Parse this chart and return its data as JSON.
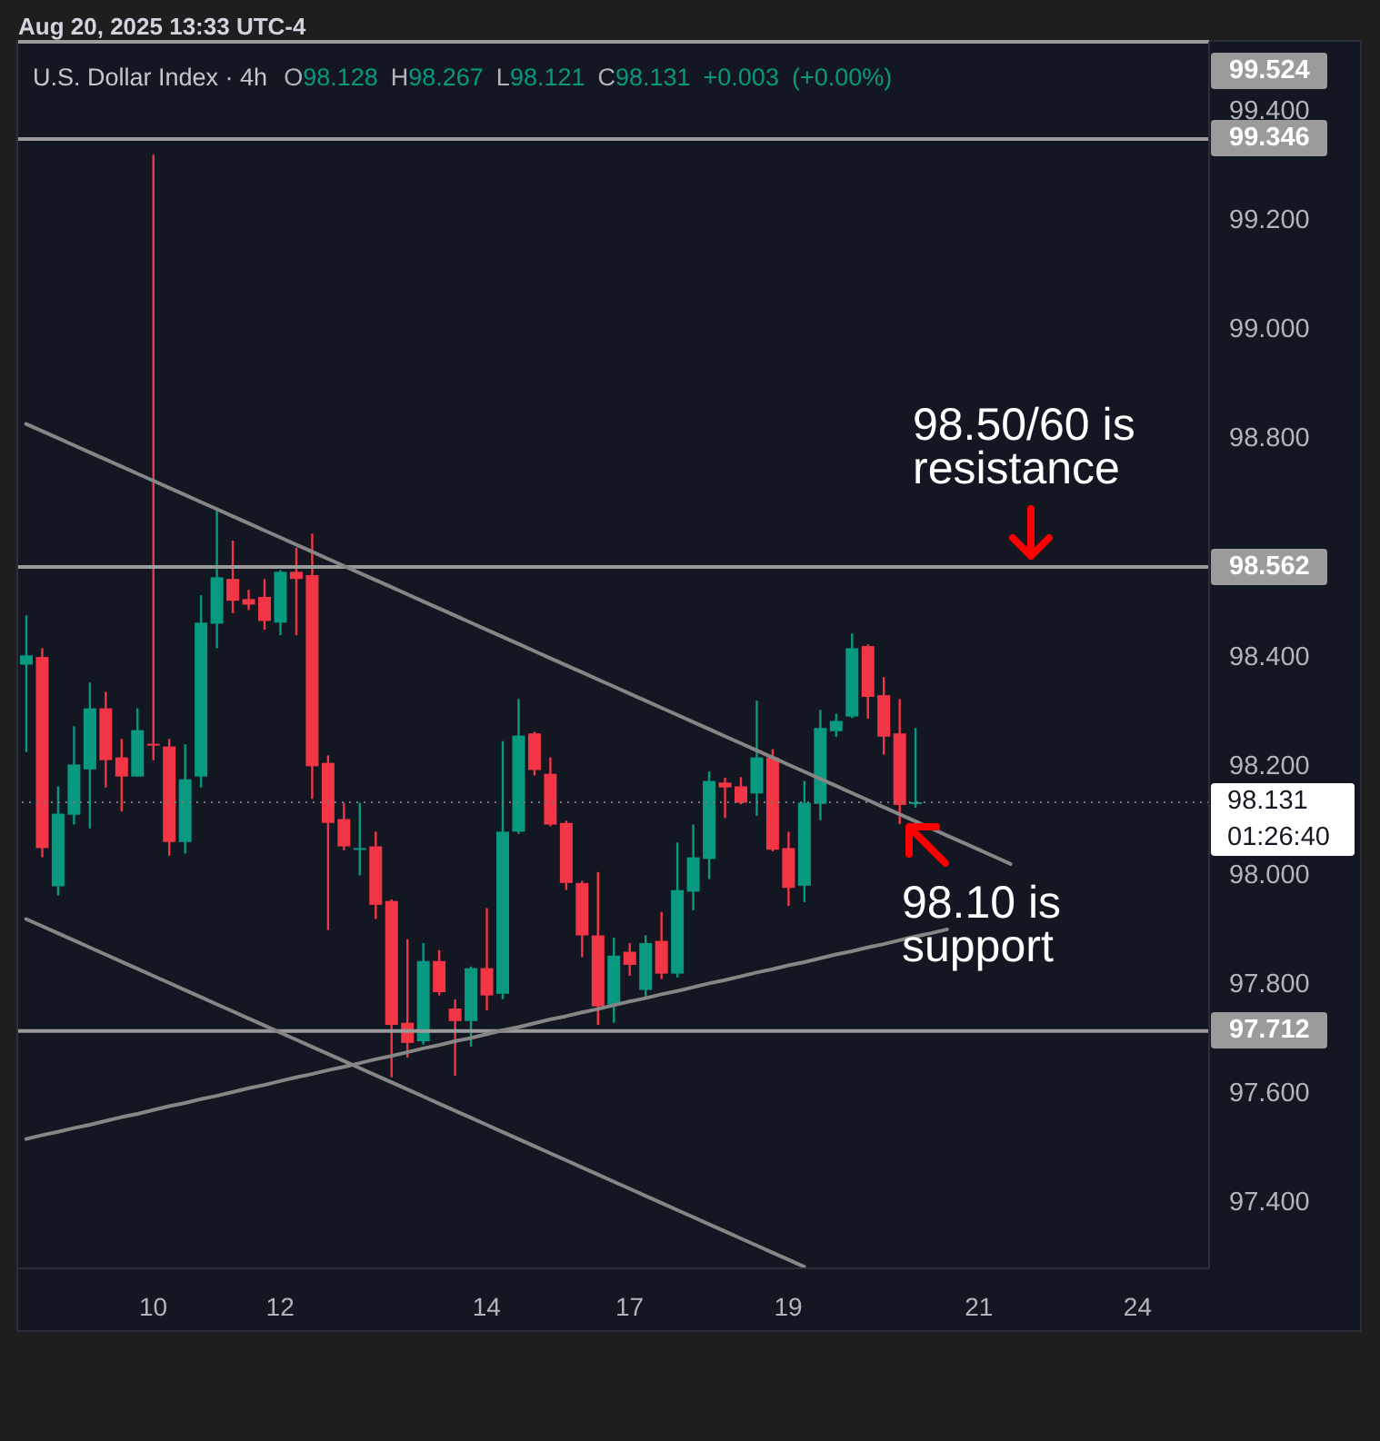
{
  "chart_data": {
    "type": "candlestick",
    "title": "U.S. Dollar Index · 4h",
    "subtitle": "O98.128 H98.267 L98.121 C98.131 +0.003 (+0.00%)",
    "annotations": [
      "Aug 20, 2025 13:33 UTC-4",
      "98.50/60 is resistance",
      "98.10 is support",
      "01:26:40"
    ],
    "categories": [
      null,
      null,
      null,
      null,
      null,
      null,
      null,
      null,
      "10",
      null,
      null,
      null,
      null,
      null,
      null,
      null,
      "12",
      null,
      null,
      null,
      null,
      null,
      null,
      null,
      null,
      null,
      null,
      null,
      null,
      "14",
      null,
      null,
      null,
      null,
      null,
      null,
      null,
      null,
      "17",
      null,
      null,
      null,
      null,
      null,
      null,
      null,
      null,
      null,
      "19",
      null,
      null,
      null,
      null,
      null,
      null,
      null,
      null,
      null,
      null,
      null,
      "21",
      null,
      null,
      null,
      null,
      null,
      null,
      null,
      null,
      null,
      "24",
      null,
      null,
      null,
      null
    ],
    "ohlc": [
      [
        98.383,
        98.473,
        98.223,
        98.4
      ],
      [
        98.397,
        98.413,
        98.03,
        98.047
      ],
      [
        97.977,
        98.16,
        97.96,
        98.11
      ],
      [
        98.108,
        98.27,
        98.09,
        98.2
      ],
      [
        98.191,
        98.35,
        98.083,
        98.303
      ],
      [
        98.303,
        98.333,
        98.158,
        98.208
      ],
      [
        98.213,
        98.247,
        98.114,
        98.178
      ],
      [
        98.178,
        98.303,
        98.178,
        98.263
      ],
      [
        98.238,
        99.317,
        98.208,
        98.235
      ],
      [
        98.233,
        98.247,
        98.033,
        98.058
      ],
      [
        98.058,
        98.237,
        98.037,
        98.173
      ],
      [
        98.178,
        98.51,
        98.158,
        98.46
      ],
      [
        98.458,
        98.669,
        98.413,
        98.543
      ],
      [
        98.54,
        98.61,
        98.477,
        98.5
      ],
      [
        98.503,
        98.52,
        98.483,
        98.493
      ],
      [
        98.507,
        98.54,
        98.447,
        98.463
      ],
      [
        98.46,
        98.556,
        98.437,
        98.553
      ],
      [
        98.553,
        98.597,
        98.437,
        98.54
      ],
      [
        98.547,
        98.623,
        98.137,
        98.197
      ],
      [
        98.203,
        98.217,
        97.897,
        98.093
      ],
      [
        98.1,
        98.13,
        98.043,
        98.05
      ],
      [
        98.045,
        98.13,
        97.997,
        98.047
      ],
      [
        98.05,
        98.077,
        97.917,
        97.943
      ],
      [
        97.95,
        97.953,
        97.627,
        97.723
      ],
      [
        97.727,
        97.88,
        97.663,
        97.69
      ],
      [
        97.693,
        97.873,
        97.687,
        97.84
      ],
      [
        97.84,
        97.86,
        97.777,
        97.783
      ],
      [
        97.753,
        97.77,
        97.63,
        97.73
      ],
      [
        97.73,
        97.83,
        97.683,
        97.827
      ],
      [
        97.827,
        97.937,
        97.75,
        97.777
      ],
      [
        97.78,
        98.243,
        97.77,
        98.077
      ],
      [
        98.077,
        98.32,
        98.073,
        98.253
      ],
      [
        98.257,
        98.26,
        98.18,
        98.19
      ],
      [
        98.183,
        98.213,
        98.087,
        98.09
      ],
      [
        98.093,
        98.097,
        97.97,
        97.983
      ],
      [
        97.983,
        97.987,
        97.847,
        97.887
      ],
      [
        97.887,
        98.003,
        97.723,
        97.757
      ],
      [
        97.76,
        97.883,
        97.727,
        97.85
      ],
      [
        97.857,
        97.873,
        97.813,
        97.833
      ],
      [
        97.787,
        97.887,
        97.773,
        97.873
      ],
      [
        97.877,
        97.93,
        97.807,
        97.817
      ],
      [
        97.817,
        98.057,
        97.81,
        97.97
      ],
      [
        97.967,
        98.09,
        97.933,
        98.03
      ],
      [
        98.027,
        98.187,
        97.99,
        98.17
      ],
      [
        98.167,
        98.176,
        98.102,
        98.158
      ],
      [
        98.16,
        98.177,
        98.127,
        98.13
      ],
      [
        98.147,
        98.317,
        98.106,
        98.213
      ],
      [
        98.213,
        98.228,
        98.041,
        98.044
      ],
      [
        98.047,
        98.077,
        97.941,
        97.974
      ],
      [
        97.978,
        98.17,
        97.948,
        98.13
      ],
      [
        98.128,
        98.3,
        98.098,
        98.267
      ],
      [
        98.261,
        98.293,
        98.251,
        98.28
      ],
      [
        98.288,
        98.44,
        98.285,
        98.413
      ],
      [
        98.417,
        98.42,
        98.284,
        98.324
      ],
      [
        98.327,
        98.36,
        98.218,
        98.251
      ],
      [
        98.257,
        98.32,
        98.091,
        98.126
      ],
      [
        98.128,
        98.267,
        98.121,
        98.131
      ],
      null,
      null,
      null,
      null,
      null,
      null,
      null,
      null,
      null,
      null,
      null,
      null,
      null,
      null,
      null,
      null,
      null,
      null
    ],
    "colors": [
      "#089981",
      "#f23645",
      "#089981",
      "#089981",
      "#089981",
      "#f23645",
      "#f23645",
      "#089981",
      "#f23645",
      "#f23645",
      "#089981",
      "#089981",
      "#089981",
      "#f23645",
      "#f23645",
      "#f23645",
      "#089981",
      "#f23645",
      "#f23645",
      "#f23645",
      "#f23645",
      "#089981",
      "#f23645",
      "#f23645",
      "#f23645",
      "#089981",
      "#f23645",
      "#f23645",
      "#089981",
      "#f23645",
      "#089981",
      "#089981",
      "#f23645",
      "#f23645",
      "#f23645",
      "#f23645",
      "#f23645",
      "#089981",
      "#f23645",
      "#089981",
      "#f23645",
      "#089981",
      "#089981",
      "#089981",
      "#f23645",
      "#f23645",
      "#089981",
      "#f23645",
      "#f23645",
      "#089981",
      "#089981",
      "#089981",
      "#089981",
      "#f23645",
      "#f23645",
      "#f23645",
      "#089981",
      null,
      null,
      null,
      null,
      null,
      null,
      null,
      null,
      null,
      null,
      null,
      null,
      null,
      null,
      null,
      null,
      null,
      null
    ],
    "series": [
      {
        "type": "line",
        "color": "#868686",
        "values": [
          98.824,
          98.811,
          98.798,
          98.785,
          98.772,
          98.759,
          98.746,
          98.733,
          98.72,
          98.707,
          98.694,
          98.681,
          98.668,
          98.655,
          98.642,
          98.629,
          98.616,
          98.603,
          98.59,
          98.577,
          98.564,
          98.551,
          98.538,
          98.525,
          98.512,
          98.499,
          98.486,
          98.473,
          98.46,
          98.447,
          98.434,
          98.421,
          98.408,
          98.395,
          98.382,
          98.369,
          98.356,
          98.343,
          98.33,
          98.317,
          98.304,
          98.291,
          98.278,
          98.265,
          98.252,
          98.239,
          98.226,
          98.213,
          98.2,
          98.187,
          98.174,
          98.161,
          98.148,
          98.135,
          98.122,
          98.109,
          98.096,
          98.083,
          98.07,
          98.057,
          98.044,
          98.031,
          98.018,
          null,
          null,
          null,
          null,
          null,
          null,
          null,
          null,
          null,
          null,
          null,
          null
        ]
      },
      {
        "type": "line",
        "color": "#868686",
        "values": [
          97.917,
          97.904,
          97.891,
          97.878,
          97.865,
          97.852,
          97.839,
          97.826,
          97.813,
          97.8,
          97.787,
          97.774,
          97.761,
          97.748,
          97.735,
          97.722,
          97.709,
          97.696,
          97.683,
          97.67,
          97.657,
          97.644,
          97.631,
          97.618,
          97.605,
          97.592,
          97.579,
          97.566,
          97.553,
          97.54,
          97.527,
          97.514,
          97.501,
          97.488,
          97.475,
          97.462,
          97.449,
          97.436,
          97.423,
          97.41,
          97.397,
          97.384,
          97.371,
          97.358,
          97.345,
          97.332,
          97.319,
          97.306,
          97.293,
          97.28,
          null,
          null,
          null,
          null,
          null,
          null,
          null,
          null,
          null,
          null,
          null,
          null,
          null,
          null,
          null,
          null,
          null,
          null,
          null,
          null,
          null,
          null,
          null,
          null,
          null
        ]
      },
      {
        "type": "line",
        "color": "#868686",
        "values": [
          97.514,
          97.521,
          97.527,
          97.534,
          97.54,
          97.547,
          97.554,
          97.56,
          97.567,
          97.574,
          97.58,
          97.587,
          97.593,
          97.6,
          97.607,
          97.613,
          97.62,
          97.627,
          97.633,
          97.64,
          97.646,
          97.653,
          97.66,
          97.666,
          97.673,
          97.68,
          97.686,
          97.693,
          97.699,
          97.706,
          97.713,
          97.719,
          97.726,
          97.733,
          97.739,
          97.746,
          97.752,
          97.759,
          97.766,
          97.772,
          97.779,
          97.785,
          97.792,
          97.799,
          97.805,
          97.812,
          97.819,
          97.825,
          97.832,
          97.838,
          97.845,
          97.852,
          97.858,
          97.865,
          97.871,
          97.878,
          97.885,
          97.891,
          97.898,
          null,
          null,
          null,
          null,
          null,
          null,
          null,
          null,
          null,
          null,
          null,
          null,
          null,
          null,
          null,
          null
        ]
      }
    ],
    "ylim": [
      97.277,
      99.524
    ],
    "yticks": [
      {
        "value": 97.4,
        "label": "97.400"
      },
      {
        "value": 97.6,
        "label": "97.600"
      },
      {
        "value": 97.8,
        "label": "97.800"
      },
      {
        "value": 98.0,
        "label": "98.000"
      },
      {
        "value": 98.2,
        "label": "98.200"
      },
      {
        "value": 98.4,
        "label": "98.400"
      },
      {
        "value": 98.8,
        "label": "98.800"
      },
      {
        "value": 99.0,
        "label": "99.000"
      },
      {
        "value": 99.2,
        "label": "99.200"
      },
      {
        "value": 99.4,
        "label": "99.400"
      }
    ],
    "ref_lines": [
      {
        "axis": "y",
        "value": 99.524,
        "label": "99.524",
        "color": "#9b9b9b"
      },
      {
        "axis": "y",
        "value": 99.346,
        "label": "99.346",
        "color": "#9b9b9b"
      },
      {
        "axis": "y",
        "value": 98.562,
        "label": "98.562",
        "color": "#9b9b9b"
      },
      {
        "axis": "y",
        "value": 97.712,
        "label": "97.712",
        "color": "#9b9b9b"
      },
      {
        "axis": "y",
        "value": 98.131,
        "label": "98.131",
        "color": "#787b86",
        "line_style": "dotted"
      }
    ]
  }
}
